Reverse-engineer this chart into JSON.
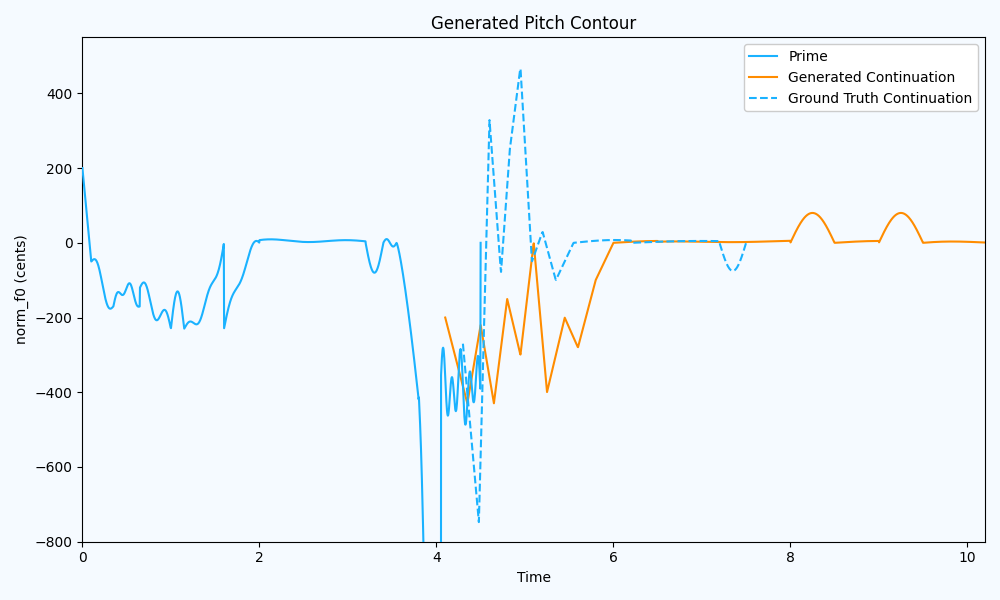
{
  "title": "Generated Pitch Contour",
  "xlabel": "Time",
  "ylabel": "norm_f0 (cents)",
  "ylim": [
    -800,
    550
  ],
  "xlim": [
    0,
    10.2
  ],
  "prime_color": "#1ab2ff",
  "generated_color": "#ff8c00",
  "ground_truth_color": "#1ab2ff",
  "prime_linewidth": 1.5,
  "generated_linewidth": 1.5,
  "ground_truth_linewidth": 1.5,
  "figsize": [
    10,
    6
  ],
  "dpi": 100,
  "legend_labels": [
    "Prime",
    "Generated Continuation",
    "Ground Truth Continuation"
  ],
  "bg_color": "#f0f8ff"
}
